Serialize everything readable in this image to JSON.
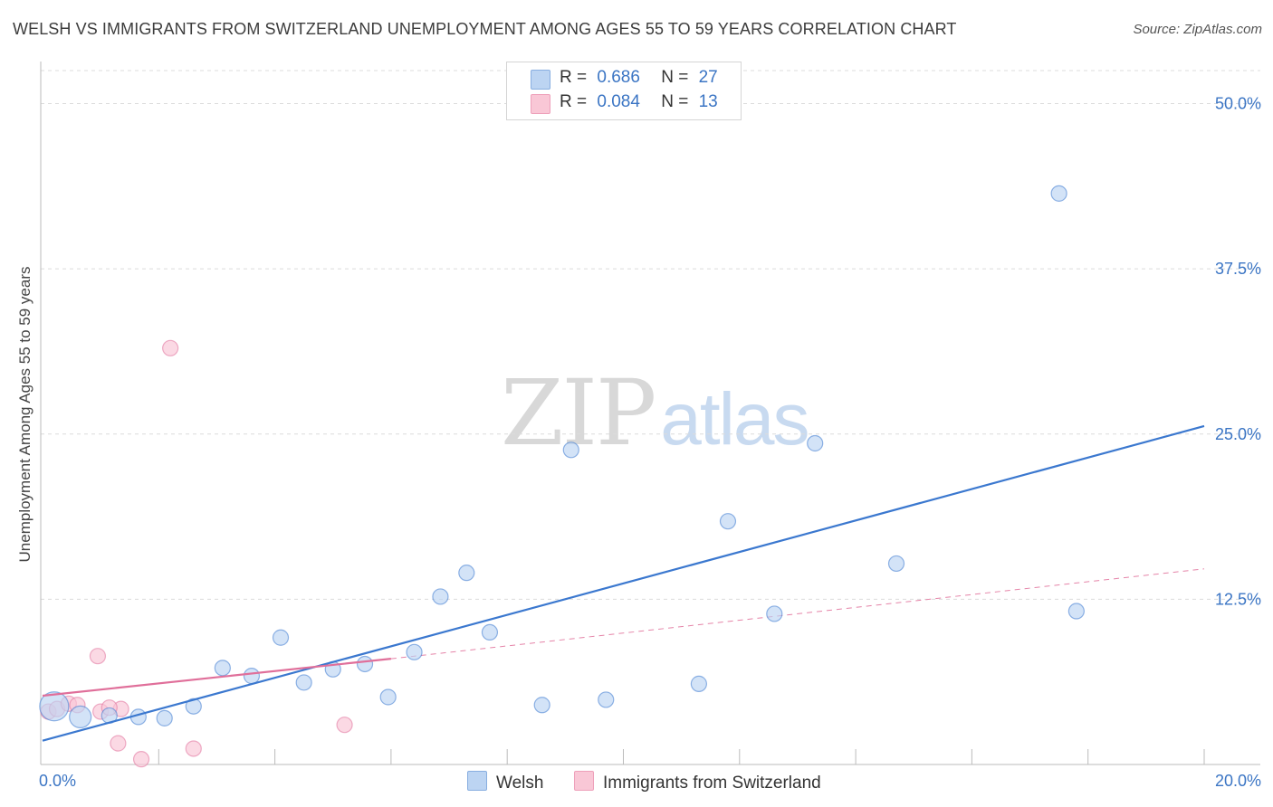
{
  "title": "WELSH VS IMMIGRANTS FROM SWITZERLAND UNEMPLOYMENT AMONG AGES 55 TO 59 YEARS CORRELATION CHART",
  "source": "Source: ZipAtlas.com",
  "watermark": {
    "zip": "ZIP",
    "atlas": "atlas"
  },
  "legend": {
    "rows": [
      {
        "r_label": "R =",
        "r_value": "0.686",
        "n_label": "N =",
        "n_value": "27",
        "color": "#b6d1f3"
      },
      {
        "r_label": "R =",
        "r_value": "0.084",
        "n_label": "N =",
        "n_value": "13",
        "color": "#f9c7d6"
      }
    ]
  },
  "bottom_legend": {
    "welsh": "Welsh",
    "swiss": "Immigrants from Switzerland"
  },
  "chart_data": {
    "type": "scatter",
    "title": "WELSH VS IMMIGRANTS FROM SWITZERLAND UNEMPLOYMENT AMONG AGES 55 TO 59 YEARS CORRELATION CHART",
    "xlabel": "",
    "ylabel": "Unemployment Among Ages 55 to 59 years",
    "xlim": [
      0,
      20
    ],
    "ylim": [
      0,
      52.5
    ],
    "x_tick_labels": [
      "0.0%",
      "20.0%"
    ],
    "y_ticks": [
      12.5,
      25.0,
      37.5,
      50.0
    ],
    "y_tick_labels": [
      "12.5%",
      "25.0%",
      "37.5%",
      "50.0%"
    ],
    "grid": true,
    "legend_position": "top-center",
    "series": [
      {
        "name": "Welsh",
        "color": "#3b78cf",
        "fill": "#bcd4f2",
        "R": 0.686,
        "N": 27,
        "points": [
          [
            0.2,
            4.4,
            3
          ],
          [
            0.65,
            3.6,
            2
          ],
          [
            1.15,
            3.7,
            1
          ],
          [
            1.65,
            3.6,
            1
          ],
          [
            2.1,
            3.5,
            1
          ],
          [
            2.6,
            4.4,
            1
          ],
          [
            3.1,
            7.3,
            1
          ],
          [
            3.6,
            6.7,
            1
          ],
          [
            4.1,
            9.6,
            1
          ],
          [
            4.5,
            6.2,
            1
          ],
          [
            5.0,
            7.2,
            1
          ],
          [
            5.55,
            7.6,
            1
          ],
          [
            5.95,
            5.1,
            1
          ],
          [
            6.4,
            8.5,
            1
          ],
          [
            6.85,
            12.7,
            1
          ],
          [
            7.3,
            14.5,
            1
          ],
          [
            7.7,
            10.0,
            1
          ],
          [
            8.6,
            4.5,
            1
          ],
          [
            9.1,
            23.8,
            1
          ],
          [
            9.7,
            4.9,
            1
          ],
          [
            11.3,
            6.1,
            1
          ],
          [
            11.8,
            18.4,
            1
          ],
          [
            12.6,
            11.4,
            1
          ],
          [
            13.3,
            24.3,
            1
          ],
          [
            14.7,
            15.2,
            1
          ],
          [
            17.5,
            43.2,
            1
          ],
          [
            17.8,
            11.6,
            1
          ]
        ],
        "trend": {
          "x": [
            0,
            20
          ],
          "y": [
            1.8,
            25.6
          ]
        }
      },
      {
        "name": "Immigrants from Switzerland",
        "color": "#e06f9a",
        "fill": "#f9c5d5",
        "R": 0.084,
        "N": 13,
        "points": [
          [
            0.1,
            4.0,
            1
          ],
          [
            0.25,
            4.2,
            1
          ],
          [
            0.45,
            4.6,
            1
          ],
          [
            0.95,
            8.2,
            1
          ],
          [
            1.0,
            4.0,
            1
          ],
          [
            1.35,
            4.2,
            1
          ],
          [
            1.3,
            1.6,
            1
          ],
          [
            1.7,
            0.4,
            1
          ],
          [
            2.2,
            31.5,
            1
          ],
          [
            2.6,
            1.2,
            1
          ],
          [
            5.2,
            3.0,
            1
          ],
          [
            1.15,
            4.3,
            1
          ],
          [
            0.6,
            4.5,
            1
          ]
        ],
        "trend": {
          "x": [
            0,
            6.0
          ],
          "y": [
            5.2,
            8.0
          ]
        },
        "trend_extension": {
          "x": [
            6.0,
            20
          ],
          "y": [
            8.0,
            14.8
          ]
        }
      }
    ]
  }
}
